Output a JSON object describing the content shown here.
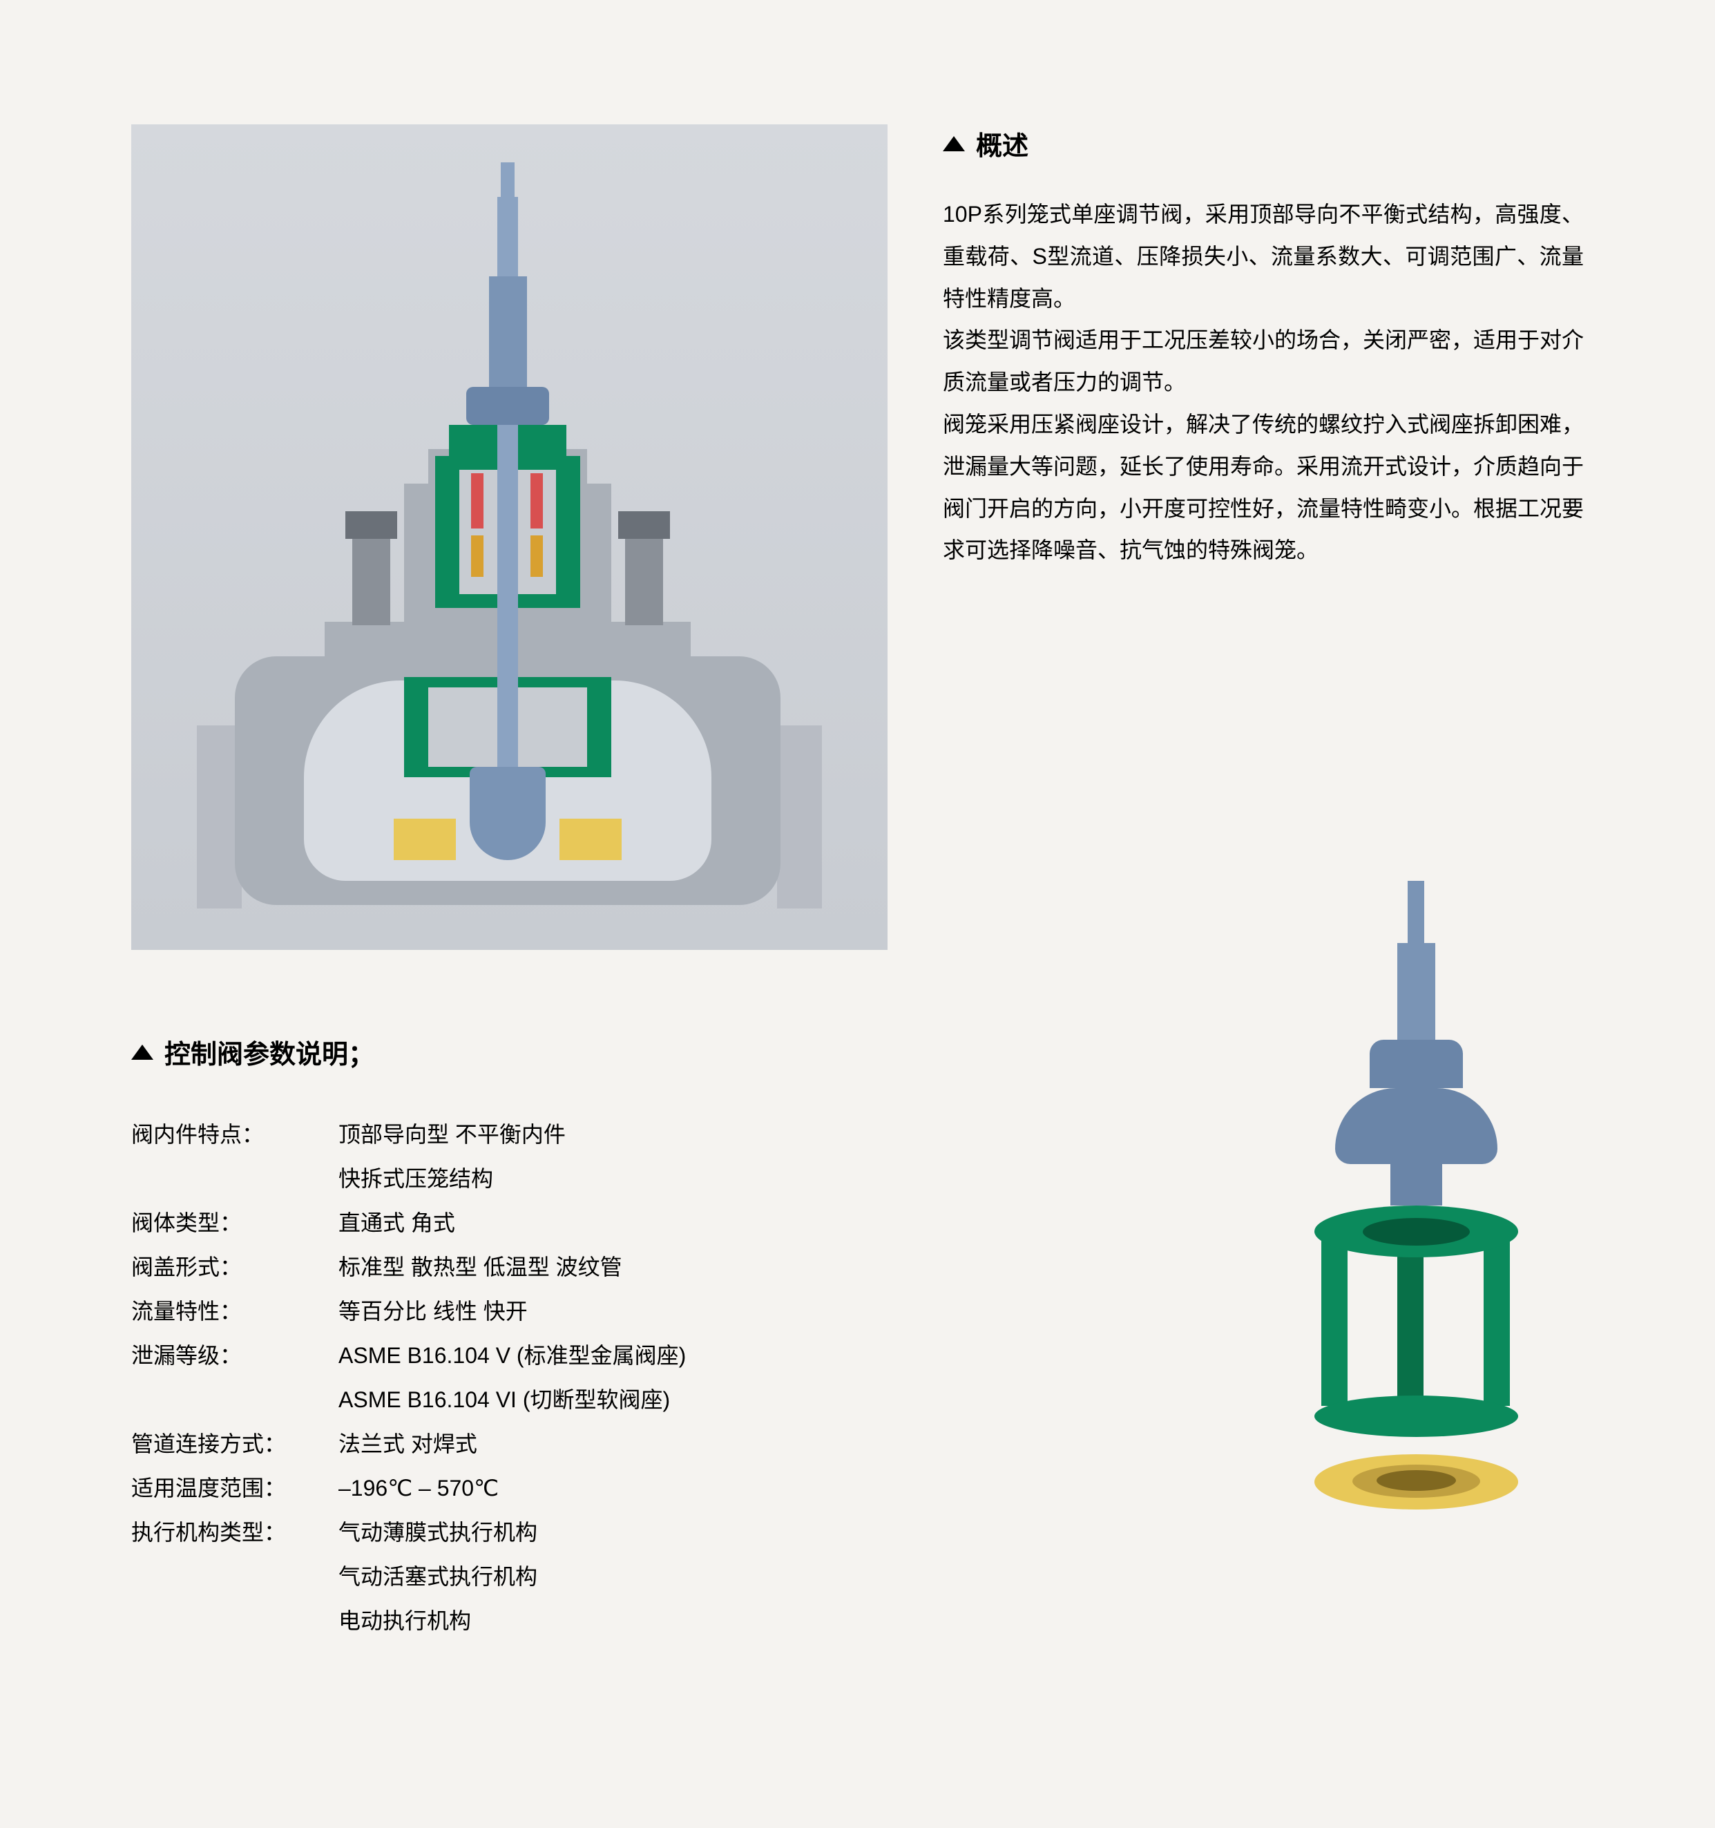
{
  "overview": {
    "heading": "概述",
    "body": "10P系列笼式单座调节阀，采用顶部导向不平衡式结构，高强度、重载荷、S型流道、压降损失小、流量系数大、可调范围广、流量特性精度高。\n该类型调节阀适用于工况压差较小的场合，关闭严密，适用于对介质流量或者压力的调节。\n阀笼采用压紧阀座设计，解决了传统的螺纹拧入式阀座拆卸困难，泄漏量大等问题，延长了使用寿命。采用流开式设计，介质趋向于阀门开启的方向，小开度可控性好，流量特性畸变小。根据工况要求可选择降噪音、抗气蚀的特殊阀笼。"
  },
  "params": {
    "heading": "控制阀参数说明；",
    "rows": [
      {
        "label": "阀内件特点：",
        "value": "顶部导向型  不平衡内件"
      },
      {
        "label": "",
        "value": "快拆式压笼结构"
      },
      {
        "label": "阀体类型：",
        "value": "直通式  角式"
      },
      {
        "label": "阀盖形式：",
        "value": "标准型  散热型  低温型  波纹管"
      },
      {
        "label": "流量特性：",
        "value": "等百分比  线性  快开"
      },
      {
        "label": "泄漏等级：",
        "value": "ASME B16.104  V  (标准型金属阀座)"
      },
      {
        "label": "",
        "value": "ASME B16.104  VI (切断型软阀座)"
      },
      {
        "label": "管道连接方式：",
        "value": "法兰式  对焊式"
      },
      {
        "label": "适用温度范围：",
        "value": "–196℃ – 570℃"
      },
      {
        "label": "执行机构类型：",
        "value": "气动薄膜式执行机构"
      },
      {
        "label": "",
        "value": "气动活塞式执行机构"
      },
      {
        "label": "",
        "value": "电动执行机构"
      }
    ]
  },
  "colors": {
    "background": "#f5f3f0",
    "valve_body_gray": "#aab0b8",
    "stem_blue": "#7a94b5",
    "cage_green": "#0b8a5c",
    "seat_yellow": "#e8c858",
    "seal_red": "#d85050"
  },
  "typography": {
    "heading_fontsize": 38,
    "body_fontsize": 32,
    "line_height": 1.9
  }
}
